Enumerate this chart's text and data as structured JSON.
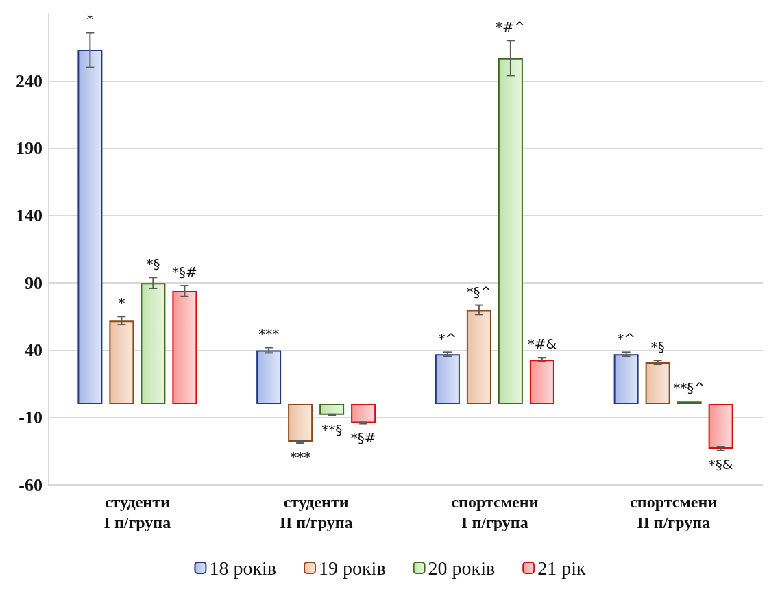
{
  "chart_data": {
    "type": "bar",
    "categories": [
      "студенти\nI п/група",
      "студенти\nII п/група",
      "спортсмени\nI п/група",
      "спортсмени\nII п/група"
    ],
    "series": [
      {
        "name": "18 років",
        "color": "#1f3a80",
        "values": [
          263,
          40,
          37,
          37
        ],
        "errors": [
          13,
          2,
          1.5,
          1.5
        ]
      },
      {
        "name": "19 років",
        "color": "#8b4a1c",
        "values": [
          62,
          -28,
          70,
          31
        ],
        "errors": [
          3,
          1,
          3.5,
          1.5
        ]
      },
      {
        "name": "20 років",
        "color": "#3d6b22",
        "values": [
          90,
          -8,
          257,
          2
        ],
        "errors": [
          4,
          0.5,
          13,
          null
        ]
      },
      {
        "name": "21 рік",
        "color": "#d40f0f",
        "values": [
          84,
          -14,
          33,
          -33
        ],
        "errors": [
          4,
          0.5,
          1.5,
          1.5
        ]
      }
    ],
    "ylim": [
      -60,
      290
    ],
    "yticks": [
      -60,
      -10,
      40,
      90,
      140,
      190,
      240
    ],
    "grid": "y",
    "legend": "bottom",
    "annotations": [
      "*",
      "*",
      "*§",
      "*§#",
      "***",
      "***",
      "**§",
      "*§#",
      "*^",
      "*§^",
      "*#^",
      "*#&",
      "*^",
      "*§",
      "**§^",
      "*§&"
    ]
  }
}
